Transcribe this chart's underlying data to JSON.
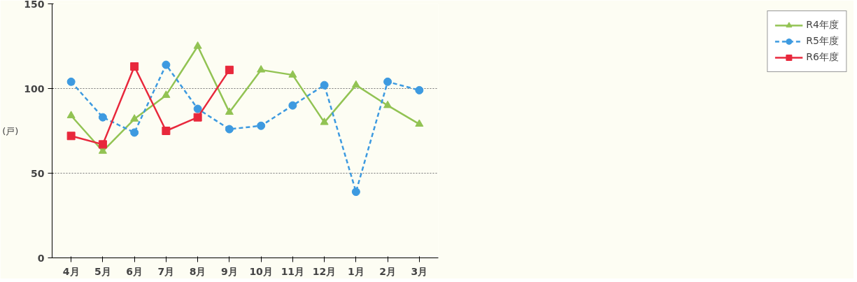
{
  "chart_data": {
    "type": "line",
    "ylabel": "(戸)",
    "categories": [
      "4月",
      "5月",
      "6月",
      "7月",
      "8月",
      "9月",
      "10月",
      "11月",
      "12月",
      "1月",
      "2月",
      "3月"
    ],
    "series": [
      {
        "name": "R4年度",
        "color": "#92c353",
        "marker": "triangle",
        "line_style": "solid",
        "values": [
          84,
          63,
          82,
          96,
          125,
          86,
          111,
          108,
          80,
          102,
          90,
          79
        ]
      },
      {
        "name": "R5年度",
        "color": "#3d9ae0",
        "marker": "circle",
        "line_style": "dashed",
        "values": [
          104,
          83,
          74,
          114,
          88,
          76,
          78,
          90,
          102,
          39,
          104,
          99
        ]
      },
      {
        "name": "R6年度",
        "color": "#e8283c",
        "marker": "square",
        "line_style": "solid",
        "values": [
          72,
          67,
          113,
          75,
          83,
          111,
          null,
          null,
          null,
          null,
          null,
          null
        ]
      }
    ],
    "ylim": [
      0,
      150
    ],
    "yticks": [
      0,
      50,
      100,
      150
    ],
    "grid": "y",
    "legend": "right"
  }
}
